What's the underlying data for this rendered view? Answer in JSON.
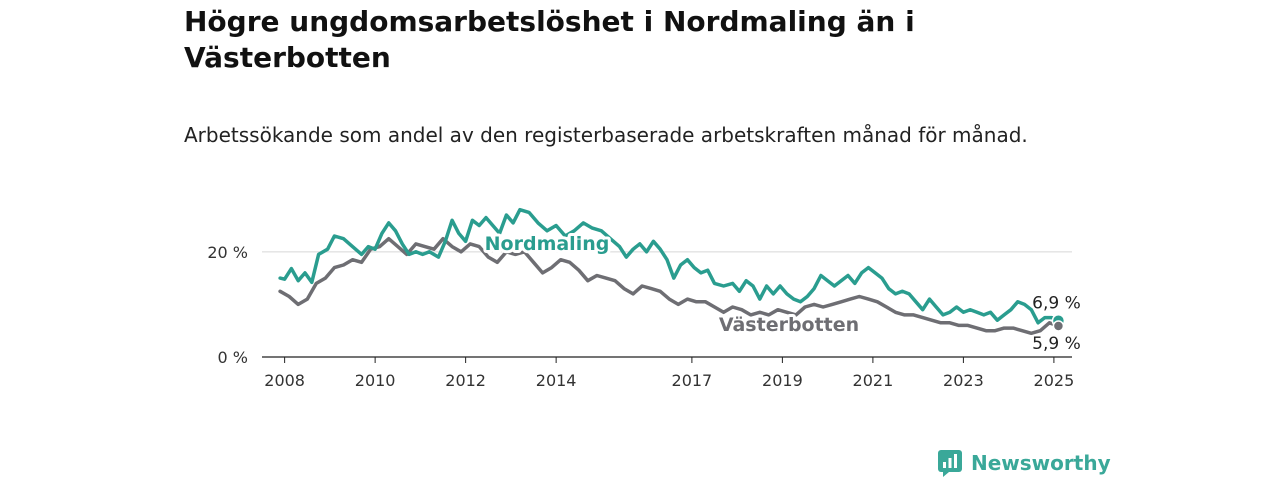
{
  "header": {
    "title": "Högre ungdomsarbetslöshet i Nordmaling än i Västerbotten",
    "subtitle": "Arbetssökande som andel av den registerbaserade arbetskraften månad för månad."
  },
  "branding": {
    "name": "Newsworthy",
    "color": "#3aa899",
    "icon": "bar-chart-logo-icon"
  },
  "chart_data": {
    "type": "line",
    "title": "",
    "xlabel": "",
    "ylabel": "",
    "xlim": [
      2007.5,
      2025.4
    ],
    "ylim": [
      0,
      27
    ],
    "y_ticks": [
      {
        "value": 0,
        "label": "0 %"
      },
      {
        "value": 20,
        "label": "20 %"
      }
    ],
    "x_ticks": [
      {
        "value": 2008,
        "label": "2008"
      },
      {
        "value": 2010,
        "label": "2010"
      },
      {
        "value": 2012,
        "label": "2012"
      },
      {
        "value": 2014,
        "label": "2014"
      },
      {
        "value": 2017,
        "label": "2017"
      },
      {
        "value": 2019,
        "label": "2019"
      },
      {
        "value": 2021,
        "label": "2021"
      },
      {
        "value": 2023,
        "label": "2023"
      },
      {
        "value": 2025,
        "label": "2025"
      }
    ],
    "grid": true,
    "legend": "inline labels",
    "series": [
      {
        "name": "Nordmaling",
        "color": "#2a9d8f",
        "end_label": "6,9 %",
        "points": [
          [
            2007.9,
            15.0
          ],
          [
            2008.0,
            14.8
          ],
          [
            2008.15,
            16.8
          ],
          [
            2008.3,
            14.5
          ],
          [
            2008.45,
            16.0
          ],
          [
            2008.6,
            14.2
          ],
          [
            2008.75,
            19.5
          ],
          [
            2008.95,
            20.5
          ],
          [
            2009.1,
            23.0
          ],
          [
            2009.3,
            22.5
          ],
          [
            2009.5,
            21.0
          ],
          [
            2009.7,
            19.5
          ],
          [
            2009.85,
            21.0
          ],
          [
            2010.0,
            20.5
          ],
          [
            2010.15,
            23.5
          ],
          [
            2010.3,
            25.5
          ],
          [
            2010.45,
            24.0
          ],
          [
            2010.6,
            21.5
          ],
          [
            2010.75,
            19.5
          ],
          [
            2010.9,
            20.0
          ],
          [
            2011.05,
            19.5
          ],
          [
            2011.2,
            20.0
          ],
          [
            2011.4,
            19.0
          ],
          [
            2011.55,
            22.0
          ],
          [
            2011.7,
            26.0
          ],
          [
            2011.85,
            23.5
          ],
          [
            2012.0,
            22.0
          ],
          [
            2012.15,
            26.0
          ],
          [
            2012.3,
            25.0
          ],
          [
            2012.45,
            26.5
          ],
          [
            2012.6,
            25.0
          ],
          [
            2012.75,
            23.5
          ],
          [
            2012.9,
            27.0
          ],
          [
            2013.05,
            25.5
          ],
          [
            2013.2,
            28.0
          ],
          [
            2013.4,
            27.5
          ],
          [
            2013.6,
            25.5
          ],
          [
            2013.8,
            24.0
          ],
          [
            2014.0,
            25.0
          ],
          [
            2014.2,
            23.0
          ],
          [
            2014.4,
            24.0
          ],
          [
            2014.6,
            25.5
          ],
          [
            2014.8,
            24.5
          ],
          [
            2015.0,
            24.0
          ],
          [
            2015.2,
            22.5
          ],
          [
            2015.4,
            21.0
          ],
          [
            2015.55,
            19.0
          ],
          [
            2015.7,
            20.5
          ],
          [
            2015.85,
            21.5
          ],
          [
            2016.0,
            20.0
          ],
          [
            2016.15,
            22.0
          ],
          [
            2016.3,
            20.5
          ],
          [
            2016.45,
            18.5
          ],
          [
            2016.6,
            15.0
          ],
          [
            2016.75,
            17.5
          ],
          [
            2016.9,
            18.5
          ],
          [
            2017.05,
            17.0
          ],
          [
            2017.2,
            16.0
          ],
          [
            2017.35,
            16.5
          ],
          [
            2017.5,
            14.0
          ],
          [
            2017.7,
            13.5
          ],
          [
            2017.9,
            14.0
          ],
          [
            2018.05,
            12.5
          ],
          [
            2018.2,
            14.5
          ],
          [
            2018.35,
            13.5
          ],
          [
            2018.5,
            11.0
          ],
          [
            2018.65,
            13.5
          ],
          [
            2018.8,
            12.0
          ],
          [
            2018.95,
            13.5
          ],
          [
            2019.1,
            12.0
          ],
          [
            2019.25,
            11.0
          ],
          [
            2019.4,
            10.5
          ],
          [
            2019.55,
            11.5
          ],
          [
            2019.7,
            13.0
          ],
          [
            2019.85,
            15.5
          ],
          [
            2020.0,
            14.5
          ],
          [
            2020.15,
            13.5
          ],
          [
            2020.3,
            14.5
          ],
          [
            2020.45,
            15.5
          ],
          [
            2020.6,
            14.0
          ],
          [
            2020.75,
            16.0
          ],
          [
            2020.9,
            17.0
          ],
          [
            2021.05,
            16.0
          ],
          [
            2021.2,
            15.0
          ],
          [
            2021.35,
            13.0
          ],
          [
            2021.5,
            12.0
          ],
          [
            2021.65,
            12.5
          ],
          [
            2021.8,
            12.0
          ],
          [
            2021.95,
            10.5
          ],
          [
            2022.1,
            9.0
          ],
          [
            2022.25,
            11.0
          ],
          [
            2022.4,
            9.5
          ],
          [
            2022.55,
            8.0
          ],
          [
            2022.7,
            8.5
          ],
          [
            2022.85,
            9.5
          ],
          [
            2023.0,
            8.5
          ],
          [
            2023.15,
            9.0
          ],
          [
            2023.3,
            8.5
          ],
          [
            2023.45,
            8.0
          ],
          [
            2023.6,
            8.5
          ],
          [
            2023.75,
            7.0
          ],
          [
            2023.9,
            8.0
          ],
          [
            2024.05,
            9.0
          ],
          [
            2024.2,
            10.5
          ],
          [
            2024.35,
            10.0
          ],
          [
            2024.5,
            9.0
          ],
          [
            2024.65,
            6.5
          ],
          [
            2024.8,
            7.5
          ],
          [
            2024.95,
            7.5
          ],
          [
            2025.1,
            6.9
          ]
        ]
      },
      {
        "name": "Västerbotten",
        "color": "#6e6e73",
        "end_label": "5,9 %",
        "points": [
          [
            2007.9,
            12.5
          ],
          [
            2008.1,
            11.5
          ],
          [
            2008.3,
            10.0
          ],
          [
            2008.5,
            11.0
          ],
          [
            2008.7,
            14.0
          ],
          [
            2008.9,
            15.0
          ],
          [
            2009.1,
            17.0
          ],
          [
            2009.3,
            17.5
          ],
          [
            2009.5,
            18.5
          ],
          [
            2009.7,
            18.0
          ],
          [
            2009.9,
            20.5
          ],
          [
            2010.1,
            21.0
          ],
          [
            2010.3,
            22.5
          ],
          [
            2010.5,
            21.0
          ],
          [
            2010.7,
            19.5
          ],
          [
            2010.9,
            21.5
          ],
          [
            2011.1,
            21.0
          ],
          [
            2011.3,
            20.5
          ],
          [
            2011.5,
            22.5
          ],
          [
            2011.7,
            21.0
          ],
          [
            2011.9,
            20.0
          ],
          [
            2012.1,
            21.5
          ],
          [
            2012.3,
            21.0
          ],
          [
            2012.5,
            19.0
          ],
          [
            2012.7,
            18.0
          ],
          [
            2012.9,
            20.0
          ],
          [
            2013.1,
            19.5
          ],
          [
            2013.3,
            20.0
          ],
          [
            2013.5,
            18.0
          ],
          [
            2013.7,
            16.0
          ],
          [
            2013.9,
            17.0
          ],
          [
            2014.1,
            18.5
          ],
          [
            2014.3,
            18.0
          ],
          [
            2014.5,
            16.5
          ],
          [
            2014.7,
            14.5
          ],
          [
            2014.9,
            15.5
          ],
          [
            2015.1,
            15.0
          ],
          [
            2015.3,
            14.5
          ],
          [
            2015.5,
            13.0
          ],
          [
            2015.7,
            12.0
          ],
          [
            2015.9,
            13.5
          ],
          [
            2016.1,
            13.0
          ],
          [
            2016.3,
            12.5
          ],
          [
            2016.5,
            11.0
          ],
          [
            2016.7,
            10.0
          ],
          [
            2016.9,
            11.0
          ],
          [
            2017.1,
            10.5
          ],
          [
            2017.3,
            10.5
          ],
          [
            2017.5,
            9.5
          ],
          [
            2017.7,
            8.5
          ],
          [
            2017.9,
            9.5
          ],
          [
            2018.1,
            9.0
          ],
          [
            2018.3,
            8.0
          ],
          [
            2018.5,
            8.5
          ],
          [
            2018.7,
            8.0
          ],
          [
            2018.9,
            9.0
          ],
          [
            2019.1,
            8.5
          ],
          [
            2019.3,
            8.0
          ],
          [
            2019.5,
            9.5
          ],
          [
            2019.7,
            10.0
          ],
          [
            2019.9,
            9.5
          ],
          [
            2020.1,
            10.0
          ],
          [
            2020.3,
            10.5
          ],
          [
            2020.5,
            11.0
          ],
          [
            2020.7,
            11.5
          ],
          [
            2020.9,
            11.0
          ],
          [
            2021.1,
            10.5
          ],
          [
            2021.3,
            9.5
          ],
          [
            2021.5,
            8.5
          ],
          [
            2021.7,
            8.0
          ],
          [
            2021.9,
            8.0
          ],
          [
            2022.1,
            7.5
          ],
          [
            2022.3,
            7.0
          ],
          [
            2022.5,
            6.5
          ],
          [
            2022.7,
            6.5
          ],
          [
            2022.9,
            6.0
          ],
          [
            2023.1,
            6.0
          ],
          [
            2023.3,
            5.5
          ],
          [
            2023.5,
            5.0
          ],
          [
            2023.7,
            5.0
          ],
          [
            2023.9,
            5.5
          ],
          [
            2024.1,
            5.5
          ],
          [
            2024.3,
            5.0
          ],
          [
            2024.5,
            4.5
          ],
          [
            2024.7,
            5.0
          ],
          [
            2024.9,
            6.5
          ],
          [
            2025.1,
            5.9
          ]
        ]
      }
    ]
  }
}
